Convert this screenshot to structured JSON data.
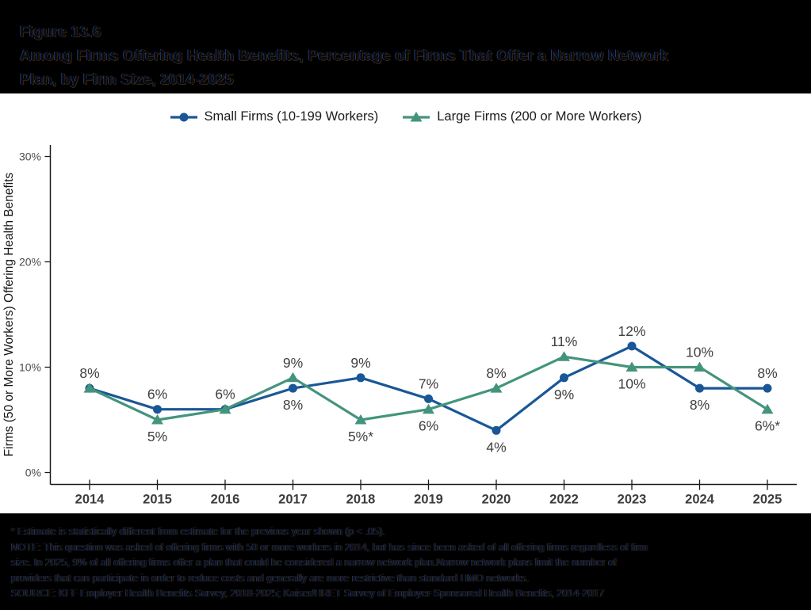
{
  "header": {
    "figure_label": "Figure 13.6",
    "title_line1": "Among Firms Offering Health Benefits, Percentage of Firms That Offer a Narrow Network",
    "title_line2": "Plan, by Firm Size, 2014-2025"
  },
  "legend": {
    "items": [
      {
        "label": "Small Firms (10-199 Workers)",
        "color": "#1A5796",
        "marker": "circle"
      },
      {
        "label": "Large Firms (200 or More Workers)",
        "color": "#44947D",
        "marker": "triangle"
      }
    ]
  },
  "chart_data": {
    "type": "line",
    "title": "Among Firms Offering Health Benefits, Percentage of Firms That Offer a Narrow Network Plan, by Firm Size, 2014-2025",
    "categories": [
      "2014",
      "2015",
      "2016",
      "2017",
      "2018",
      "2019",
      "2020",
      "2022",
      "2023",
      "2024",
      "2025"
    ],
    "xlabel": "",
    "ylabel": "Firms (50 or More Workers) Offering Health Benefits",
    "ylim": [
      0,
      32
    ],
    "grid": false,
    "legend_position": "top",
    "yticks": [
      {
        "value": 0,
        "label": "0%"
      },
      {
        "value": 10,
        "label": "10%"
      },
      {
        "value": 20,
        "label": "20%"
      },
      {
        "value": 30,
        "label": "30%"
      }
    ],
    "series": [
      {
        "name": "Small Firms (10-199 Workers)",
        "color": "#1A5796",
        "marker": "circle",
        "values": [
          8,
          6,
          6,
          8,
          9,
          7,
          4,
          9,
          12,
          8,
          8
        ],
        "point_labels": [
          {
            "text": "8%",
            "pos": "above"
          },
          {
            "text": "6%",
            "pos": "above"
          },
          {
            "text": "6%",
            "pos": "above"
          },
          {
            "text": "8%",
            "pos": "below"
          },
          {
            "text": "9%",
            "pos": "above"
          },
          {
            "text": "7%",
            "pos": "above"
          },
          {
            "text": "4%",
            "pos": "below"
          },
          {
            "text": "9%",
            "pos": "below"
          },
          {
            "text": "12%",
            "pos": "above"
          },
          {
            "text": "8%",
            "pos": "below"
          },
          {
            "text": "8%",
            "pos": "above"
          }
        ]
      },
      {
        "name": "Large Firms (200 or More Workers)",
        "color": "#44947D",
        "marker": "triangle",
        "values": [
          8,
          5,
          6,
          9,
          5,
          6,
          8,
          11,
          10,
          10,
          6
        ],
        "point_labels": [
          null,
          {
            "text": "5%",
            "pos": "below"
          },
          null,
          {
            "text": "9%",
            "pos": "above"
          },
          {
            "text": "5%*",
            "pos": "below"
          },
          {
            "text": "6%",
            "pos": "below"
          },
          {
            "text": "8%",
            "pos": "above"
          },
          {
            "text": "11%",
            "pos": "above"
          },
          {
            "text": "10%",
            "pos": "below"
          },
          {
            "text": "10%",
            "pos": "above"
          },
          {
            "text": "6%*",
            "pos": "below"
          }
        ]
      }
    ]
  },
  "footnotes": {
    "lines": [
      "* Estimate is statistically different from estimate for the previous year shown (p < .05).",
      "NOTE: This question was asked of offering firms with 50 or more workers in 2014, but has since been asked of all offering firms regardless of firm",
      "size. In 2025, 9% of all offering firms offer a plan that could be considered a narrow network plan.Narrow network plans limit the number of",
      "providers that can participate in order to reduce costs and generally are more restrictive than standard HMO networks.",
      "SOURCE: KFF Employer Health Benefits Survey, 2018-2025; Kaiser/HRET Survey of Employer-Sponsored Health Benefits, 2014-2017"
    ]
  },
  "style": {
    "axis_color": "#1a1a1a",
    "ytick_label_color": "#4d4d4d",
    "xtick_label_color": "#3d3d3d",
    "data_label_color": "#3f3f3f",
    "background": "#ffffff",
    "band_color": "#000000"
  }
}
